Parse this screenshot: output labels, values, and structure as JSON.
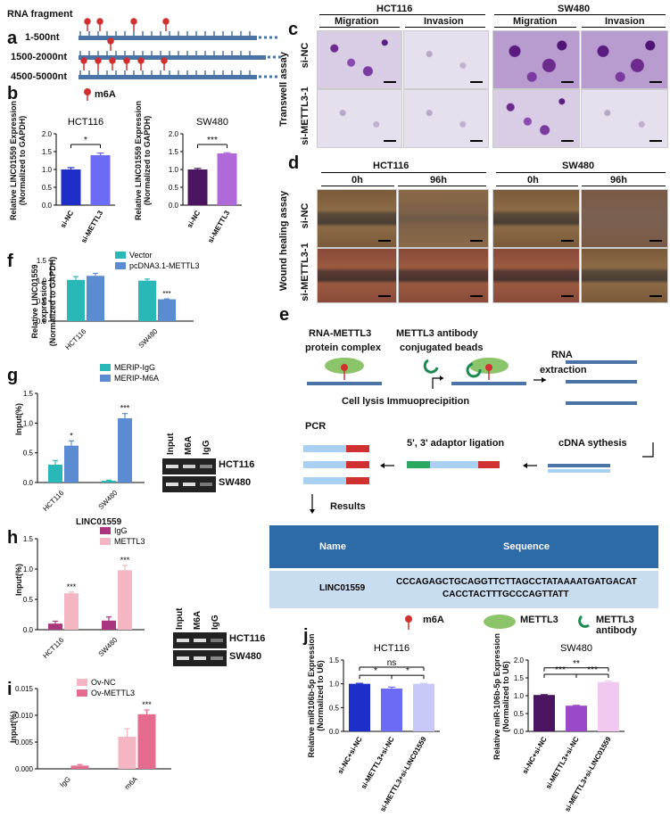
{
  "colors": {
    "blue_strand": "#4a73a6",
    "pin": "#d03030",
    "vector": "#2ab7b7",
    "pcdna": "#5b8bd0",
    "merip_igg": "#2ab7b7",
    "merip_m6a": "#5b8bd0",
    "igg_h": "#a8357e",
    "mettl3_h": "#f4b6c2",
    "ovnc": "#f4b6c2",
    "ovmettl3": "#e56b8f"
  },
  "a": {
    "label": "a",
    "title": "RNA fragment",
    "rows": [
      "1-500nt",
      "1500-2000nt",
      "4500-5000nt"
    ],
    "legend": "m6A"
  },
  "b": {
    "label": "b",
    "ylabel1": "Relative LINC01559 Expression",
    "ylabel2": "(Normalized to GAPDH)"
  },
  "c": {
    "label": "c",
    "hct": "HCT116",
    "sw": "SW480",
    "migration": "Migration",
    "invasion": "Invasion",
    "assay": "Transwell assay",
    "row1": "si-NC",
    "row2": "si-METTL3-1"
  },
  "d": {
    "label": "d",
    "hct": "HCT116",
    "sw": "SW480",
    "t0": "0h",
    "t96": "96h",
    "assay": "Wound healing assay",
    "row1": "si-NC",
    "row2": "si-METTL3-1"
  },
  "e": {
    "label": "e",
    "complex1": "RNA-METTL3",
    "complex2": "protein complex",
    "antibody1": "METTL3 antibody",
    "antibody2": "conjugated beads",
    "rna1": "RNA",
    "rna2": "extraction",
    "lysis": "Cell lysis Immuoprecipition",
    "pcr": "PCR",
    "ligation": "5', 3' adaptor ligation",
    "cdna": "cDNA sythesis",
    "results": "Results",
    "table_name": "Name",
    "table_seq": "Sequence",
    "row_name": "LINC01559",
    "row_seq1": "CCCAGAGCTGCAGGTTCTTAGCCTATAAAATGATGACAT",
    "row_seq2": "CACCTACTTTGCCCAGTTATT",
    "leg_m6a": "m6A",
    "leg_mettl3": "METTL3",
    "leg_ab": "METTL3 antibody"
  },
  "f": {
    "label": "f",
    "ylabel1": "Relative LINC01559 expression",
    "ylabel2": "(Normalized to GAPDH)",
    "sig": "***"
  },
  "g": {
    "label": "g",
    "ylabel": "Input(%)",
    "sig1": "*",
    "sig2": "***",
    "gel_input": "Input",
    "gel_m6a": "M6A",
    "gel_igg": "IgG",
    "gel_hct": "HCT116",
    "gel_sw": "SW480"
  },
  "h": {
    "label": "h",
    "title": "LINC01559",
    "ylabel": "Input(%)",
    "sig1": "***",
    "sig2": "***",
    "gel_input": "Input",
    "gel_m6a": "M6A",
    "gel_igg": "IgG",
    "gel_hct": "HCT116",
    "gel_sw": "SW480"
  },
  "i": {
    "label": "i",
    "ylabel": "Input(%)",
    "sig": "***"
  },
  "j": {
    "label": "j",
    "ylabel1": "Relative miR106b-5p Expression",
    "ylabel1b": "Relative miR-106b-5p Expression",
    "ylabel2": "(Normalized to U6)"
  },
  "chart_data": [
    {
      "id": "b1",
      "type": "bar",
      "title": "HCT116",
      "categories": [
        "si-NC",
        "si-METTL3"
      ],
      "values": [
        1.0,
        1.4
      ],
      "errors": [
        0.05,
        0.06
      ],
      "colors": [
        "#1d2ec9",
        "#6b6bf5"
      ],
      "ylim": [
        0,
        2.0
      ],
      "yticks": [
        "0.0",
        "0.5",
        "1.0",
        "1.5",
        "2.0"
      ],
      "sig": [
        {
          "from": 0,
          "to": 1,
          "text": "*",
          "level": 1.7
        }
      ]
    },
    {
      "id": "b2",
      "type": "bar",
      "title": "SW480",
      "categories": [
        "si-NC",
        "si-METTL3"
      ],
      "values": [
        1.0,
        1.45
      ],
      "errors": [
        0.03,
        0.02
      ],
      "colors": [
        "#4a1460",
        "#b06ad8"
      ],
      "ylim": [
        0,
        2.0
      ],
      "yticks": [
        "0.0",
        "0.5",
        "1.0",
        "1.5",
        "2.0"
      ],
      "sig": [
        {
          "from": 0,
          "to": 1,
          "text": "***",
          "level": 1.7
        }
      ]
    },
    {
      "id": "f",
      "type": "bar",
      "categories": [
        "HCT116",
        "SW480"
      ],
      "series": [
        {
          "name": "Vector",
          "values": [
            1.02,
            1.0
          ],
          "errors": [
            0.08,
            0.04
          ],
          "color": "#2ab7b7"
        },
        {
          "name": "pcDNA3.1-METTL3",
          "values": [
            1.12,
            0.54
          ],
          "errors": [
            0.06,
            0.01
          ],
          "color": "#5b8bd0"
        }
      ],
      "ylim": [
        0,
        1.5
      ],
      "yticks": [
        "0.0",
        "0.5",
        "1.0",
        "1.5"
      ]
    },
    {
      "id": "g",
      "type": "bar",
      "categories": [
        "HCT116",
        "SW480"
      ],
      "series": [
        {
          "name": "MERIP-IgG",
          "values": [
            0.3,
            0.03
          ],
          "errors": [
            0.07,
            0.01
          ],
          "color": "#2ab7b7"
        },
        {
          "name": "MERIP-M6A",
          "values": [
            0.62,
            1.08
          ],
          "errors": [
            0.08,
            0.08
          ],
          "color": "#5b8bd0"
        }
      ],
      "ylim": [
        0,
        1.5
      ],
      "yticks": [
        "0.0",
        "0.5",
        "1.0",
        "1.5"
      ]
    },
    {
      "id": "h",
      "type": "bar",
      "categories": [
        "HCT116",
        "SW480"
      ],
      "series": [
        {
          "name": "IgG",
          "values": [
            0.1,
            0.15
          ],
          "errors": [
            0.04,
            0.06
          ],
          "color": "#a8357e"
        },
        {
          "name": "METTL3",
          "values": [
            0.6,
            0.98
          ],
          "errors": [
            0.02,
            0.08
          ],
          "color": "#f4b6c2"
        }
      ],
      "ylim": [
        0,
        1.5
      ],
      "yticks": [
        "0.0",
        "0.5",
        "1.0",
        "1.5"
      ]
    },
    {
      "id": "i",
      "type": "bar",
      "categories": [
        "IgG",
        "m6A"
      ],
      "series": [
        {
          "name": "Ov-NC",
          "values": [
            0.0,
            0.006
          ],
          "errors": [
            0.0,
            0.0015
          ],
          "color": "#f4b6c2"
        },
        {
          "name": "Ov-METTL3",
          "values": [
            0.0006,
            0.0102
          ],
          "errors": [
            0.0002,
            0.0008
          ],
          "color": "#e56b8f"
        }
      ],
      "ylim": [
        0,
        0.015
      ],
      "yticks": [
        "0.000",
        "0.005",
        "0.010",
        "0.015"
      ]
    },
    {
      "id": "j1",
      "type": "bar",
      "title": "HCT116",
      "categories": [
        "si-NC+si-NC",
        "si-METTL3+si-NC",
        "si-METTL3+si-LINC01559"
      ],
      "values": [
        1.0,
        0.9,
        1.0
      ],
      "errors": [
        0.01,
        0.03,
        0.01
      ],
      "colors": [
        "#1d2ec9",
        "#6b6bf5",
        "#c8c8f8"
      ],
      "ylim": [
        0,
        1.5
      ],
      "yticks": [
        "0.0",
        "0.5",
        "1.0",
        "1.5"
      ],
      "sig": [
        {
          "from": 0,
          "to": 2,
          "text": "ns",
          "level": 1.35
        },
        {
          "from": 0,
          "to": 1,
          "text": "*",
          "level": 1.18
        },
        {
          "from": 1,
          "to": 2,
          "text": "*",
          "level": 1.18
        }
      ]
    },
    {
      "id": "j2",
      "type": "bar",
      "title": "SW480",
      "categories": [
        "si-NC+si-NC",
        "si-METTL3+si-NC",
        "si-METTL3+si-LINC01559"
      ],
      "values": [
        1.02,
        0.72,
        1.38
      ],
      "errors": [
        0.01,
        0.01,
        0.03
      ],
      "colors": [
        "#4a1460",
        "#9a4ac8",
        "#f0c8f0"
      ],
      "ylim": [
        0,
        2.0
      ],
      "yticks": [
        "0.0",
        "0.5",
        "1.0",
        "1.5",
        "2.0"
      ],
      "sig": [
        {
          "from": 0,
          "to": 2,
          "text": "**",
          "level": 1.78
        },
        {
          "from": 0,
          "to": 1,
          "text": "***",
          "level": 1.6
        },
        {
          "from": 1,
          "to": 2,
          "text": "***",
          "level": 1.6
        }
      ]
    }
  ]
}
